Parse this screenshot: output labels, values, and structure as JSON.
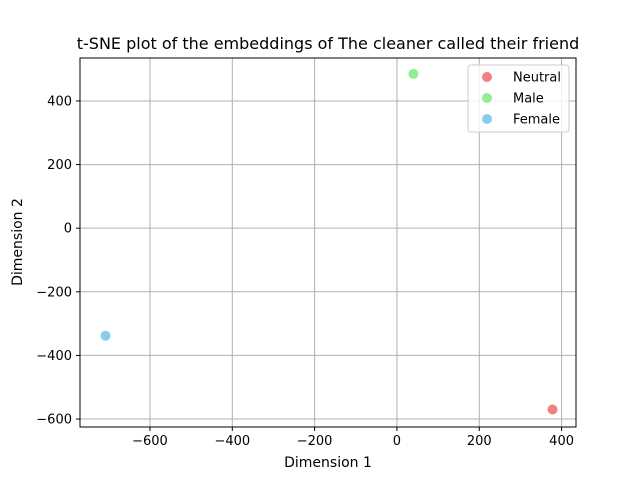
{
  "chart_data": {
    "type": "scatter",
    "title": "t-SNE plot of the embeddings of The cleaner called their friend",
    "xlabel": "Dimension 1",
    "ylabel": "Dimension 2",
    "xlim": [
      -770,
      435
    ],
    "ylim": [
      -625,
      535
    ],
    "xticks": [
      -600,
      -400,
      -200,
      0,
      200,
      400
    ],
    "yticks": [
      -600,
      -400,
      -200,
      0,
      200,
      400
    ],
    "xtick_labels": [
      "−600",
      "−400",
      "−200",
      "0",
      "200",
      "400"
    ],
    "ytick_labels": [
      "−600",
      "−400",
      "−200",
      "0",
      "200",
      "400"
    ],
    "grid": true,
    "legend_position": "top-right",
    "series": [
      {
        "name": "Neutral",
        "color": "#f08080",
        "points": [
          [
            378,
            -570
          ]
        ]
      },
      {
        "name": "Male",
        "color": "#90ee90",
        "points": [
          [
            40,
            485
          ]
        ]
      },
      {
        "name": "Female",
        "color": "#87ceeb",
        "points": [
          [
            -708,
            -338
          ]
        ]
      }
    ]
  }
}
